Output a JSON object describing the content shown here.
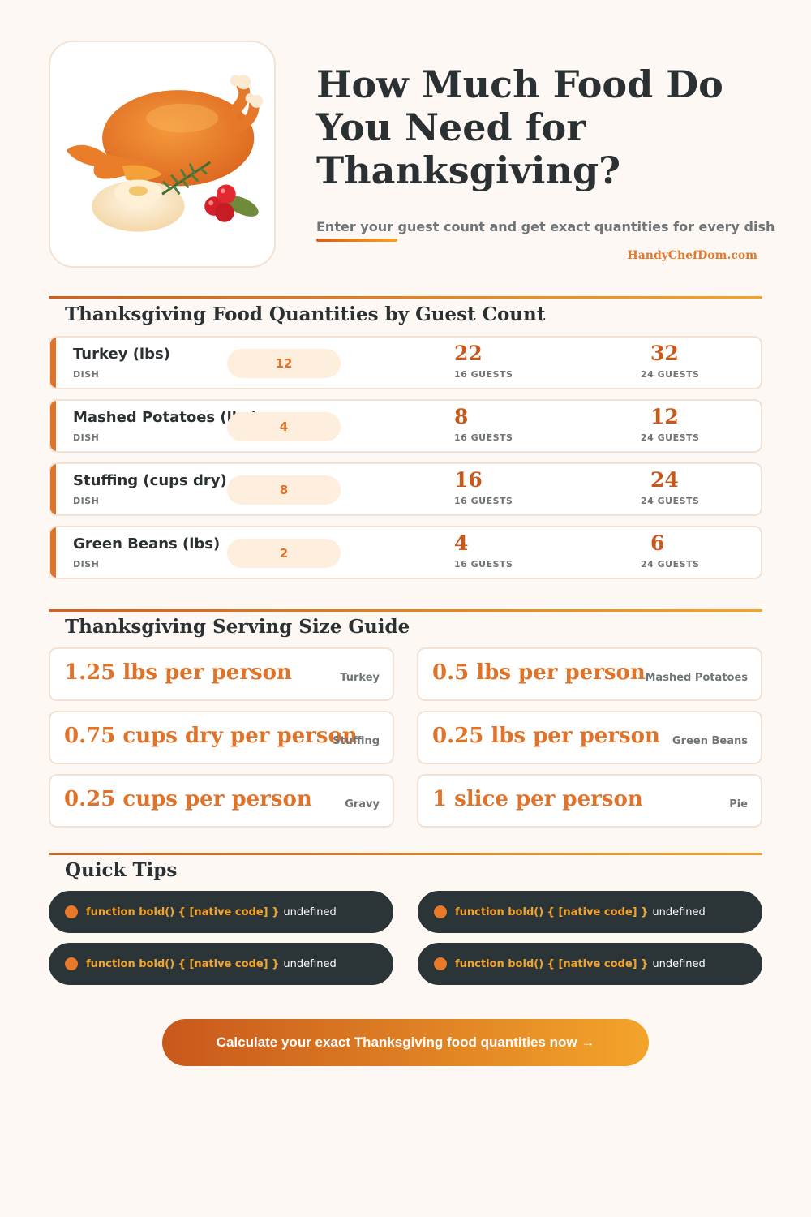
{
  "header": {
    "title": "How Much Food Do You Need for Thanksgiving?",
    "subtitle": "Enter your guest count and get exact quantities for every dish",
    "brand": "HandyChefDom.com",
    "illustration_icon": "roast-turkey-illustration"
  },
  "quantities": {
    "title": "Thanksgiving Food Quantities by Guest Count",
    "dish_label": "DISH",
    "col16_label": "16 GUESTS",
    "col24_label": "24 GUESTS",
    "rows": [
      {
        "dish": "Turkey (lbs)",
        "base": "12",
        "guests16": "22",
        "guests24": "32"
      },
      {
        "dish": "Mashed Potatoes (lbs)",
        "base": "4",
        "guests16": "8",
        "guests24": "12"
      },
      {
        "dish": "Stuffing (cups dry)",
        "base": "8",
        "guests16": "16",
        "guests24": "24"
      },
      {
        "dish": "Green Beans (lbs)",
        "base": "2",
        "guests16": "4",
        "guests24": "6"
      }
    ]
  },
  "serving": {
    "title": "Thanksgiving Serving Size Guide",
    "items": [
      {
        "amount": "1.25 lbs per person",
        "dish": "Turkey"
      },
      {
        "amount": "0.5 lbs per person",
        "dish": "Mashed Potatoes"
      },
      {
        "amount": "0.75 cups dry per person",
        "dish": "Stuffing"
      },
      {
        "amount": "0.25 lbs per person",
        "dish": "Green Beans"
      },
      {
        "amount": "0.25 cups per person",
        "dish": "Gravy"
      },
      {
        "amount": "1 slice per person",
        "dish": "Pie"
      }
    ]
  },
  "tips": {
    "title": "Quick Tips",
    "items": [
      {
        "bold": "function bold() { [native code] }",
        "text": "undefined"
      },
      {
        "bold": "function bold() { [native code] }",
        "text": "undefined"
      },
      {
        "bold": "function bold() { [native code] }",
        "text": "undefined"
      },
      {
        "bold": "function bold() { [native code] }",
        "text": "undefined"
      }
    ]
  },
  "cta": {
    "label": "Calculate your exact Thanksgiving food quantities now →"
  },
  "colors": {
    "accent": "#e0732a",
    "accent_dark": "#c8581c",
    "gradient_end": "#f3a42a",
    "dark_pill": "#2b3436",
    "background": "#fdf8f3"
  }
}
